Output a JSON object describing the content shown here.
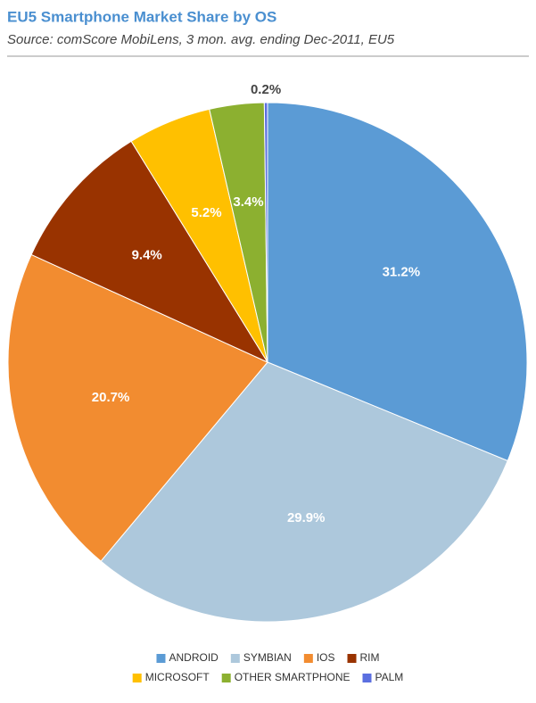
{
  "chart_data": {
    "type": "pie",
    "title": "EU5 Smartphone Market Share by OS",
    "subtitle": "Source: comScore MobiLens, 3 mon. avg. ending Dec-2011, EU5",
    "categories": [
      "ANDROID",
      "SYMBIAN",
      "IOS",
      "RIM",
      "MICROSOFT",
      "OTHER SMARTPHONE",
      "PALM"
    ],
    "values": [
      31.2,
      29.9,
      20.7,
      9.4,
      5.2,
      3.4,
      0.2
    ],
    "value_labels": [
      "31.2%",
      "29.9%",
      "20.7%",
      "9.4%",
      "5.2%",
      "3.4%",
      "0.2%"
    ],
    "colors": [
      "#5b9bd5",
      "#adc8dc",
      "#f28c30",
      "#993300",
      "#ffc000",
      "#8cb030",
      "#5b6fe0"
    ],
    "legend": "bottom"
  }
}
